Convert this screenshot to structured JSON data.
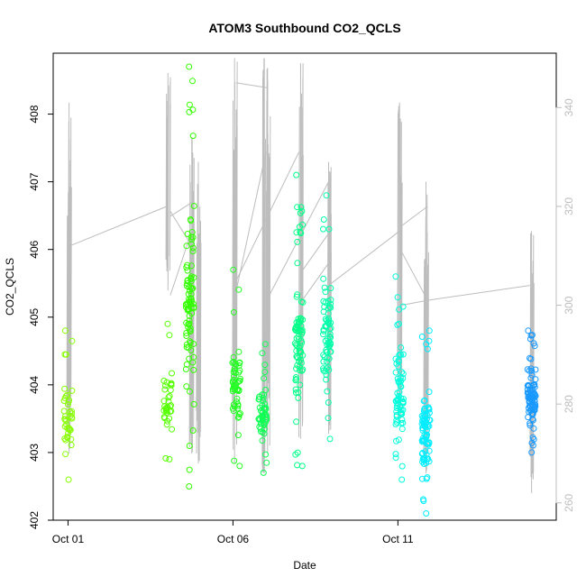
{
  "chart_data": {
    "type": "scatter",
    "title": "ATOM3 Southbound CO2_QCLS",
    "xlabel": "Date",
    "ylabel": "CO2_QCLS",
    "x_unit": "day of October",
    "xlim": [
      0.55,
      15.8
    ],
    "ylim": [
      402,
      408.9
    ],
    "x_ticks": [
      {
        "value": 1,
        "label": "Oct 01"
      },
      {
        "value": 6,
        "label": "Oct 06"
      },
      {
        "value": 11,
        "label": "Oct 11"
      }
    ],
    "y_ticks": [
      402,
      403,
      404,
      405,
      406,
      407,
      408
    ],
    "y2_ticks": [
      260,
      280,
      300,
      320,
      340
    ],
    "y2lim": [
      256.5,
      351
    ],
    "grid": false,
    "legend": "none",
    "colors": {
      "secondary_series": "#bdbdbd",
      "right_axis": "#bdbdbd"
    },
    "scatter_clusters": [
      {
        "x": 1.0,
        "y_min": 402.6,
        "y_max": 404.8,
        "color": "#88ff00",
        "n": 40
      },
      {
        "x": 4.03,
        "y_min": 402.9,
        "y_max": 404.9,
        "color": "#55ff00",
        "n": 35
      },
      {
        "x": 4.7,
        "y_min": 402.5,
        "y_max": 408.7,
        "color": "#33ff00",
        "n": 90
      },
      {
        "x": 6.1,
        "y_min": 402.8,
        "y_max": 405.7,
        "color": "#22ff22",
        "n": 55
      },
      {
        "x": 6.9,
        "y_min": 402.7,
        "y_max": 404.6,
        "color": "#11ff55",
        "n": 55
      },
      {
        "x": 8.0,
        "y_min": 402.8,
        "y_max": 407.1,
        "color": "#00ff88",
        "n": 80
      },
      {
        "x": 8.85,
        "y_min": 403.2,
        "y_max": 406.8,
        "color": "#00ffaa",
        "n": 70
      },
      {
        "x": 11.05,
        "y_min": 402.6,
        "y_max": 405.6,
        "color": "#00ffdd",
        "n": 70
      },
      {
        "x": 11.85,
        "y_min": 402.1,
        "y_max": 404.8,
        "color": "#00eeff",
        "n": 80
      },
      {
        "x": 15.05,
        "y_min": 403.0,
        "y_max": 404.8,
        "color": "#1899ff",
        "n": 90
      }
    ],
    "secondary_series": {
      "axis": "right",
      "spikes": [
        {
          "x": 1.03,
          "low": 270,
          "high": 341
        },
        {
          "x": 4.03,
          "low": 303,
          "high": 347
        },
        {
          "x": 4.75,
          "low": 270,
          "high": 334
        },
        {
          "x": 4.95,
          "low": 268,
          "high": 329
        },
        {
          "x": 6.05,
          "low": 268,
          "high": 350
        },
        {
          "x": 6.95,
          "low": 266,
          "high": 350
        },
        {
          "x": 7.05,
          "low": 270,
          "high": 348
        },
        {
          "x": 8.05,
          "low": 273,
          "high": 349
        },
        {
          "x": 8.9,
          "low": 274,
          "high": 329
        },
        {
          "x": 11.05,
          "low": 276,
          "high": 341
        },
        {
          "x": 11.85,
          "low": 266,
          "high": 325
        },
        {
          "x": 15.05,
          "low": 262,
          "high": 315
        }
      ],
      "connectors": [
        [
          [
            1.05,
            312
          ],
          [
            4.0,
            320
          ]
        ],
        [
          [
            4.1,
            318
          ],
          [
            4.8,
            321
          ]
        ],
        [
          [
            4.1,
            302
          ],
          [
            4.75,
            315
          ]
        ],
        [
          [
            4.1,
            319
          ],
          [
            4.75,
            312
          ]
        ],
        [
          [
            6.1,
            345
          ],
          [
            7.05,
            344
          ]
        ],
        [
          [
            6.1,
            303
          ],
          [
            7.0,
            331
          ]
        ],
        [
          [
            6.1,
            305
          ],
          [
            8.0,
            331
          ]
        ],
        [
          [
            7.1,
            302
          ],
          [
            8.9,
            325
          ]
        ],
        [
          [
            8.1,
            307
          ],
          [
            8.95,
            315
          ]
        ],
        [
          [
            8.1,
            301
          ],
          [
            8.95,
            309
          ]
        ],
        [
          [
            8.9,
            304
          ],
          [
            11.05,
            315
          ]
        ],
        [
          [
            11.1,
            316
          ],
          [
            11.9,
            320
          ]
        ],
        [
          [
            11.1,
            300
          ],
          [
            11.9,
            301
          ]
        ],
        [
          [
            11.1,
            311
          ],
          [
            11.9,
            301
          ]
        ],
        [
          [
            11.9,
            301
          ],
          [
            15.0,
            304
          ]
        ]
      ]
    }
  }
}
